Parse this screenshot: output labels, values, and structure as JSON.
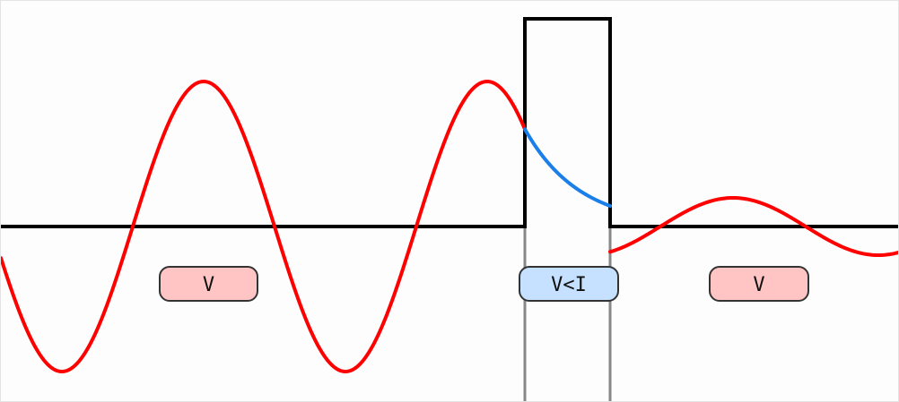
{
  "diagram": {
    "regions": [
      {
        "id": "left",
        "label": "V",
        "color": "#ffc4c4"
      },
      {
        "id": "barrier",
        "label": "V<I",
        "color": "#c6e0ff"
      },
      {
        "id": "right",
        "label": "V",
        "color": "#ffc4c4"
      }
    ],
    "colors": {
      "oscillating_wave": "#ff0000",
      "decaying_wave": "#1a7fe8",
      "potential": "#000000",
      "barrier_extension": "#888888"
    }
  }
}
